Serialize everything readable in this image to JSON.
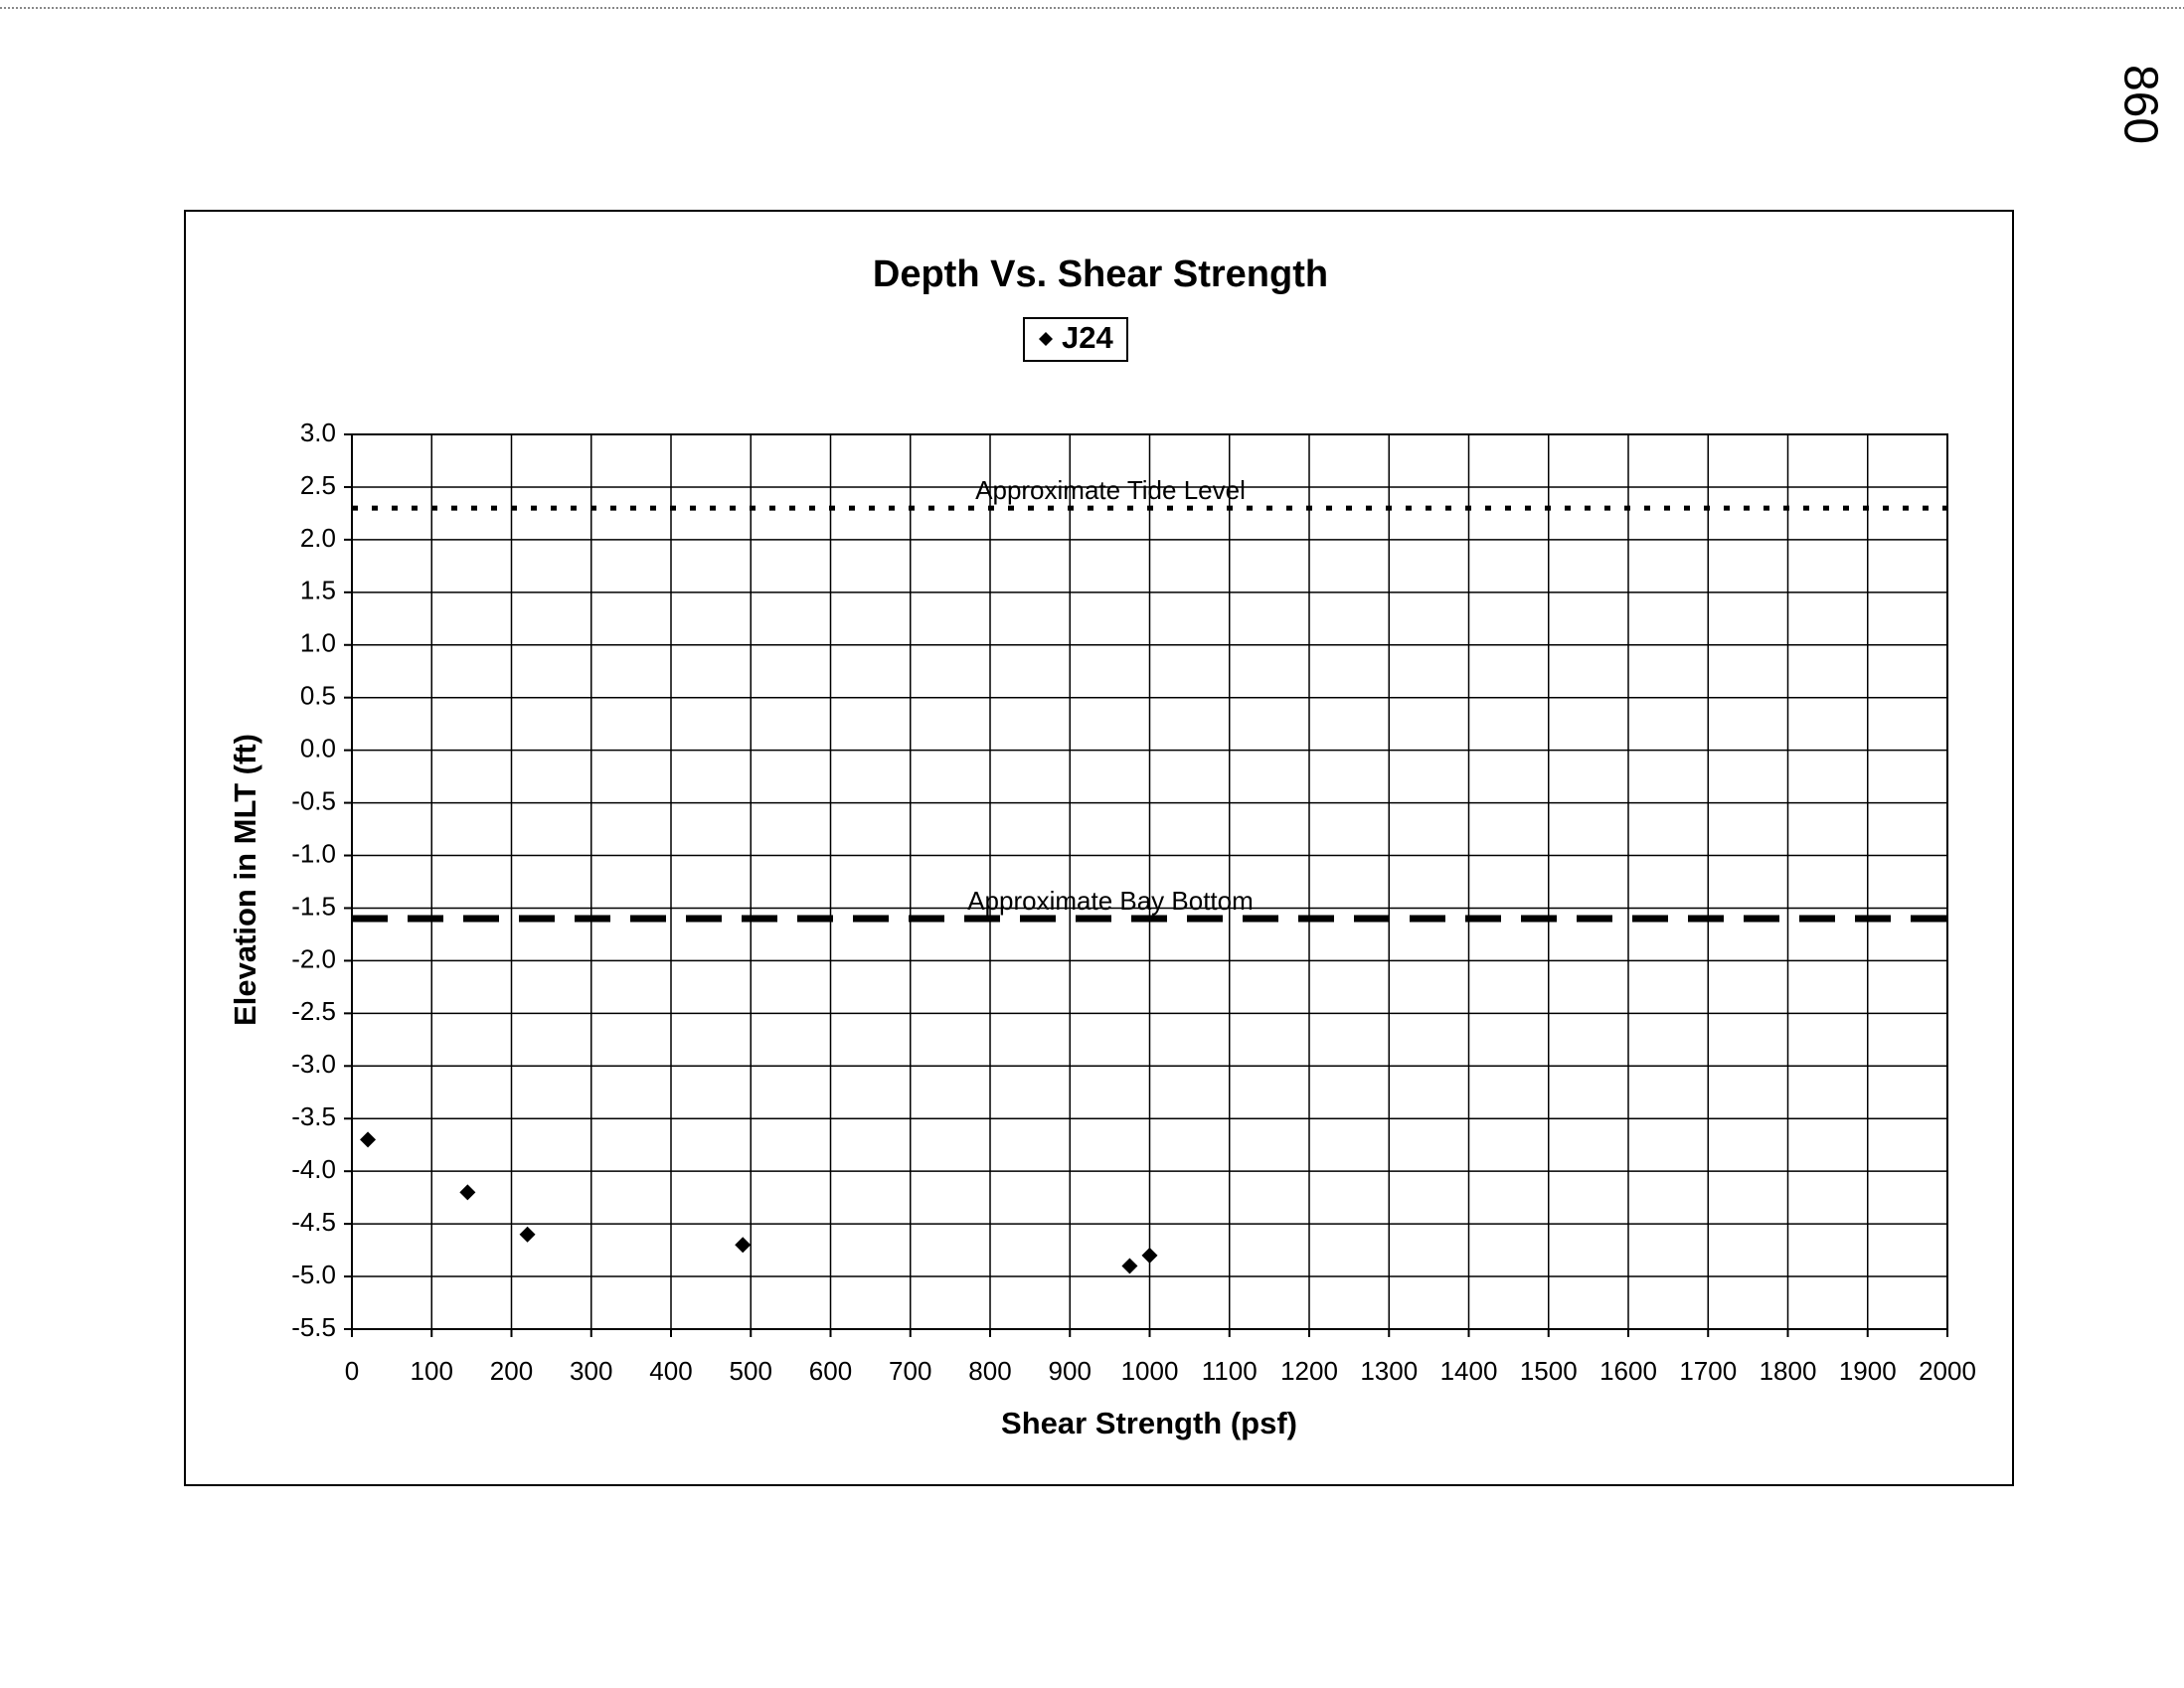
{
  "page_note": "860",
  "chart_data": {
    "type": "scatter",
    "title": "Depth Vs. Shear Strength",
    "x_label": "Shear Strength (psf)",
    "y_label": "Elevation in MLT (ft)",
    "series": [
      {
        "name": "J24",
        "color": "#000000",
        "x": [
          20,
          145,
          220,
          490,
          975,
          1000
        ],
        "values": [
          -3.7,
          -4.2,
          -4.6,
          -4.7,
          -4.9,
          -4.8
        ]
      }
    ],
    "reference_lines": [
      {
        "label": "Approximate Tide Level",
        "value": 2.3,
        "style": "dotted"
      },
      {
        "label": "Approximate Bay Bottom",
        "value": -1.6,
        "style": "dashed"
      }
    ],
    "xlim": [
      0,
      2000
    ],
    "xticks": [
      0,
      100,
      200,
      300,
      400,
      500,
      600,
      700,
      800,
      900,
      1000,
      1100,
      1200,
      1300,
      1400,
      1500,
      1600,
      1700,
      1800,
      1900,
      2000
    ],
    "ylim": [
      -5.5,
      3
    ],
    "yticks": [
      {
        "value": 3,
        "label": "3.0"
      },
      2.5,
      {
        "value": 2,
        "label": "2.0"
      },
      1.5,
      {
        "value": 1,
        "label": "1.0"
      },
      0.5,
      {
        "value": 0,
        "label": "0.0"
      },
      -0.5,
      {
        "value": -1,
        "label": "-1.0"
      },
      -1.5,
      {
        "value": -2,
        "label": "-2.0"
      },
      -2.5,
      {
        "value": -3,
        "label": "-3.0"
      },
      -3.5,
      {
        "value": -4,
        "label": "-4.0"
      },
      -4.5,
      {
        "value": -5,
        "label": "-5.0"
      },
      -5.5
    ],
    "grid": true,
    "legend": "top"
  }
}
